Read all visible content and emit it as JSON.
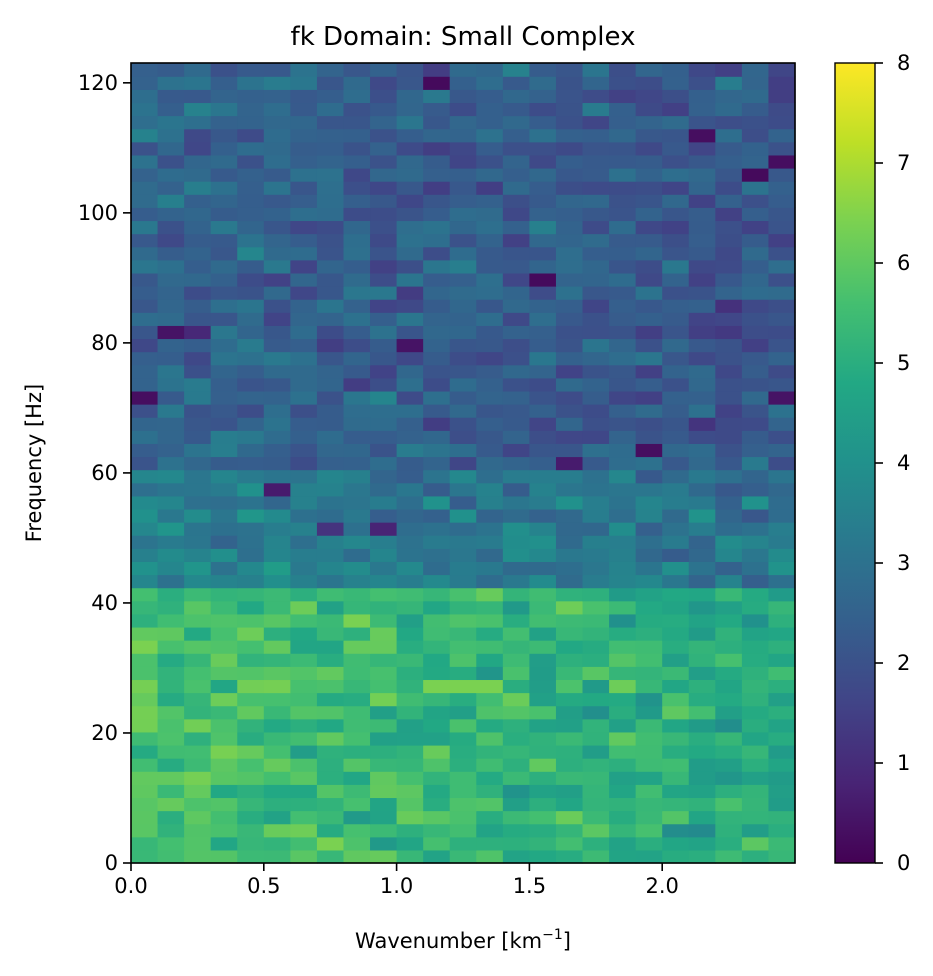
{
  "chart_data": {
    "type": "heatmap",
    "title": "fk Domain: Small Complex",
    "xlabel": "Wavenumber [km",
    "xlabel_sup": "−1",
    "xlabel_end": "]",
    "ylabel": "Frequency [Hz]",
    "xlim": [
      0,
      2.5
    ],
    "ylim": [
      0,
      123.05
    ],
    "x_ticks": [
      {
        "value": 0.0,
        "label": "0.0"
      },
      {
        "value": 0.5,
        "label": "0.5"
      },
      {
        "value": 1.0,
        "label": "1.0"
      },
      {
        "value": 1.5,
        "label": "1.5"
      },
      {
        "value": 2.0,
        "label": "2.0"
      }
    ],
    "y_ticks": [
      {
        "value": 0,
        "label": "0"
      },
      {
        "value": 20,
        "label": "20"
      },
      {
        "value": 40,
        "label": "40"
      },
      {
        "value": 60,
        "label": "60"
      },
      {
        "value": 80,
        "label": "80"
      },
      {
        "value": 100,
        "label": "100"
      },
      {
        "value": 120,
        "label": "120"
      }
    ],
    "colormap": "viridis",
    "colorbar": {
      "min": 0,
      "max": 8,
      "ticks": [
        {
          "value": 0,
          "label": "0"
        },
        {
          "value": 1,
          "label": "1"
        },
        {
          "value": 2,
          "label": "2"
        },
        {
          "value": 3,
          "label": "3"
        },
        {
          "value": 4,
          "label": "4"
        },
        {
          "value": 5,
          "label": "5"
        },
        {
          "value": 6,
          "label": "6"
        },
        {
          "value": 7,
          "label": "7"
        },
        {
          "value": 8,
          "label": "8"
        }
      ]
    },
    "x_bins": 25,
    "y_bins": 61,
    "y_bin_size": 2.017,
    "noise_seed": 7,
    "profile": {
      "description_free": "",
      "low_band_top": 43,
      "low_band_mean": 5.1,
      "mid_band_top": 60,
      "mid_band_mean": 3.4,
      "high_band_mean": 2.3,
      "noise": 0.55
    },
    "highlight_cells": [
      {
        "col": 0,
        "row": 35,
        "value": 0.3
      },
      {
        "col": 2,
        "row": 40,
        "value": 0.9
      },
      {
        "col": 5,
        "row": 28,
        "value": 0.6
      },
      {
        "col": 7,
        "row": 25,
        "value": 1.2
      },
      {
        "col": 9,
        "row": 25,
        "value": 0.8
      },
      {
        "col": 11,
        "row": 59,
        "value": 0.2
      },
      {
        "col": 15,
        "row": 44,
        "value": 0.2
      },
      {
        "col": 10,
        "row": 39,
        "value": 0.4
      },
      {
        "col": 1,
        "row": 40,
        "value": 0.4
      },
      {
        "col": 19,
        "row": 31,
        "value": 0.3
      },
      {
        "col": 23,
        "row": 52,
        "value": 0.2
      },
      {
        "col": 24,
        "row": 53,
        "value": 0.3
      },
      {
        "col": 21,
        "row": 55,
        "value": 0.3
      },
      {
        "col": 24,
        "row": 35,
        "value": 0.4
      },
      {
        "col": 16,
        "row": 30,
        "value": 0.6
      },
      {
        "col": 0,
        "row": 12,
        "value": 6.1
      },
      {
        "col": 0,
        "row": 10,
        "value": 6.3
      },
      {
        "col": 3,
        "row": 12,
        "value": 6.2
      },
      {
        "col": 4,
        "row": 8,
        "value": 6.1
      },
      {
        "col": 9,
        "row": 12,
        "value": 6.3
      },
      {
        "col": 11,
        "row": 13,
        "value": 6.4
      },
      {
        "col": 12,
        "row": 13,
        "value": 6.4
      },
      {
        "col": 13,
        "row": 13,
        "value": 6.4
      },
      {
        "col": 18,
        "row": 13,
        "value": 6.2
      },
      {
        "col": 9,
        "row": 16,
        "value": 6.1
      },
      {
        "col": 4,
        "row": 17,
        "value": 6.2
      },
      {
        "col": 8,
        "row": 16,
        "value": 6.1
      },
      {
        "col": 2,
        "row": 19,
        "value": 5.9
      },
      {
        "col": 1,
        "row": 4,
        "value": 6.1
      }
    ]
  }
}
